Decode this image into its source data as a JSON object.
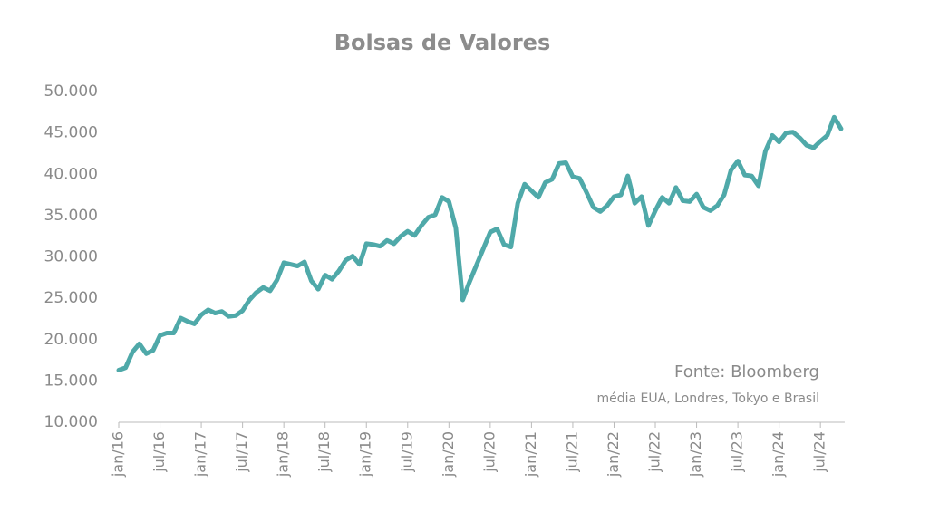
{
  "chart_data": {
    "type": "line",
    "title": "Bolsas de Valores",
    "annotations": [
      "Fonte: Bloomberg",
      "média EUA, Londres, Tokyo e Brasil"
    ],
    "categories": [
      "jan/16",
      null,
      null,
      null,
      null,
      null,
      "jul/16",
      null,
      null,
      null,
      null,
      null,
      "jan/17",
      null,
      null,
      null,
      null,
      null,
      "jul/17",
      null,
      null,
      null,
      null,
      null,
      "jan/18",
      null,
      null,
      null,
      null,
      null,
      "jul/18",
      null,
      null,
      null,
      null,
      null,
      "jan/19",
      null,
      null,
      null,
      null,
      null,
      "jul/19",
      null,
      null,
      null,
      null,
      null,
      "jan/20",
      null,
      null,
      null,
      null,
      null,
      "jul/20",
      null,
      null,
      null,
      null,
      null,
      "jan/21",
      null,
      null,
      null,
      null,
      null,
      "jul/21",
      null,
      null,
      null,
      null,
      null,
      "jan/22",
      null,
      null,
      null,
      null,
      null,
      "jul/22",
      null,
      null,
      null,
      null,
      null,
      "jan/23",
      null,
      null,
      null,
      null,
      null,
      "jul/23",
      null,
      null,
      null,
      null,
      null,
      "jan/24",
      null,
      null,
      null,
      null,
      null,
      "jul/24",
      null,
      null,
      null
    ],
    "series": [
      {
        "color": "#4fa9a9",
        "values": [
          16300,
          16600,
          18500,
          19500,
          18300,
          18700,
          20500,
          20800,
          20800,
          22600,
          22200,
          21900,
          23000,
          23600,
          23200,
          23400,
          22800,
          22900,
          23500,
          24800,
          25700,
          26300,
          25900,
          27200,
          29300,
          29100,
          28900,
          29400,
          27100,
          26100,
          27800,
          27300,
          28300,
          29600,
          30100,
          29100,
          31600,
          31500,
          31300,
          32000,
          31600,
          32500,
          33100,
          32600,
          33800,
          34800,
          35100,
          37200,
          36700,
          33500,
          24800,
          27000,
          29000,
          31000,
          33000,
          33400,
          31500,
          31200,
          36500,
          38800,
          38000,
          37200,
          39000,
          39400,
          41300,
          41400,
          39700,
          39500,
          37800,
          36000,
          35500,
          36200,
          37300,
          37500,
          39800,
          36500,
          37300,
          33800,
          35600,
          37200,
          36500,
          38400,
          36800,
          36700,
          37600,
          36000,
          35600,
          36200,
          37500,
          40500,
          41600,
          39900,
          39800,
          38600,
          42800,
          44700,
          43900,
          45000,
          45100,
          44400,
          43500,
          43200,
          44000,
          44700,
          46900,
          45500
        ]
      }
    ],
    "ylim": [
      10000,
      50000
    ],
    "yticks": [
      {
        "value": 10000,
        "label": "10.000"
      },
      {
        "value": 15000,
        "label": "15.000"
      },
      {
        "value": 20000,
        "label": "20.000"
      },
      {
        "value": 25000,
        "label": "25.000"
      },
      {
        "value": 30000,
        "label": "30.000"
      },
      {
        "value": 35000,
        "label": "35.000"
      },
      {
        "value": 40000,
        "label": "40.000"
      },
      {
        "value": 45000,
        "label": "45.000"
      },
      {
        "value": 50000,
        "label": "50.000"
      }
    ],
    "grid": false
  }
}
